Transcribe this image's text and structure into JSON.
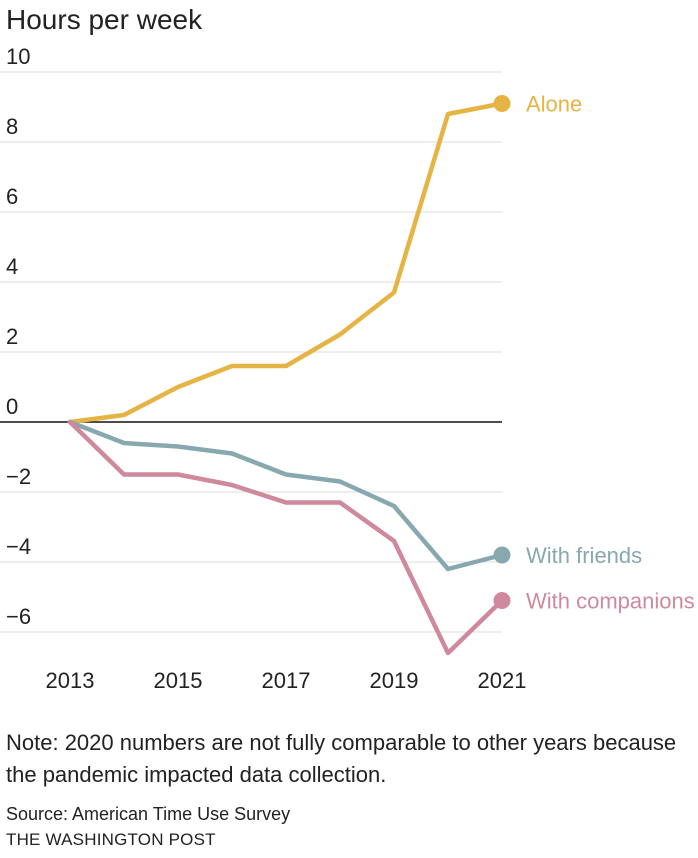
{
  "chart_data": {
    "type": "line",
    "ylabel": "Hours per week",
    "xlabel": "",
    "x": [
      2013,
      2014,
      2015,
      2016,
      2017,
      2018,
      2019,
      2020,
      2021
    ],
    "x_ticks": [
      "2013",
      "2015",
      "2017",
      "2019",
      "2021"
    ],
    "y_ticks": [
      "10",
      "8",
      "6",
      "4",
      "2",
      "0",
      "−2",
      "−4",
      "−6"
    ],
    "ylim": [
      -7,
      10
    ],
    "grid": true,
    "legend": "inline-right",
    "series": [
      {
        "name": "Alone",
        "color": "#e5b444",
        "values": [
          0,
          0.2,
          1.0,
          1.6,
          1.6,
          2.5,
          3.7,
          8.8,
          9.1
        ]
      },
      {
        "name": "With friends",
        "color": "#88a8b0",
        "values": [
          0,
          -0.6,
          -0.7,
          -0.9,
          -1.5,
          -1.7,
          -2.4,
          -4.2,
          -3.8
        ]
      },
      {
        "name": "With companions",
        "color": "#cf899c",
        "values": [
          0,
          -1.5,
          -1.5,
          -1.8,
          -2.3,
          -2.3,
          -3.4,
          -6.6,
          -5.1
        ]
      }
    ]
  },
  "note": "Note: 2020 numbers are not fully comparable to other years because the pandemic impacted data collection.",
  "source": "Source: American Time Use Survey",
  "credit": "THE WASHINGTON POST"
}
